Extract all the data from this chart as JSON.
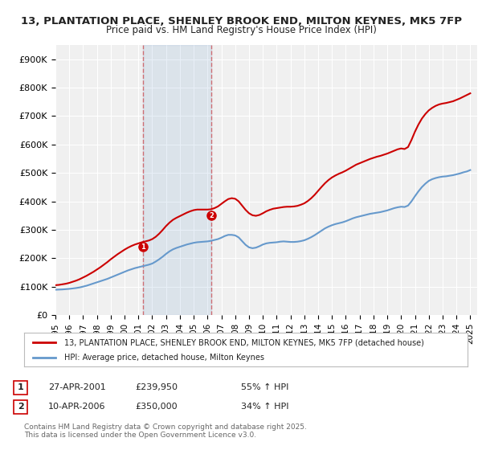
{
  "title_line1": "13, PLANTATION PLACE, SHENLEY BROOK END, MILTON KEYNES, MK5 7FP",
  "title_line2": "Price paid vs. HM Land Registry's House Price Index (HPI)",
  "background_color": "#ffffff",
  "plot_bg_color": "#f0f0f0",
  "ylabel": "",
  "ylim": [
    0,
    950000
  ],
  "yticks": [
    0,
    100000,
    200000,
    300000,
    400000,
    500000,
    600000,
    700000,
    800000,
    900000
  ],
  "ytick_labels": [
    "£0",
    "£100K",
    "£200K",
    "£300K",
    "£400K",
    "£500K",
    "£600K",
    "£700K",
    "£800K",
    "£900K"
  ],
  "xlim_start": 1995.0,
  "xlim_end": 2025.5,
  "xtick_years": [
    1995,
    1996,
    1997,
    1998,
    1999,
    2000,
    2001,
    2002,
    2003,
    2004,
    2005,
    2006,
    2007,
    2008,
    2009,
    2010,
    2011,
    2012,
    2013,
    2014,
    2015,
    2016,
    2017,
    2018,
    2019,
    2020,
    2021,
    2022,
    2023,
    2024,
    2025
  ],
  "hpi_line_color": "#6699cc",
  "price_line_color": "#cc0000",
  "purchase1_x": 2001.32,
  "purchase1_y": 239950,
  "purchase2_x": 2006.27,
  "purchase2_y": 350000,
  "purchase1_label": "1",
  "purchase2_label": "2",
  "vline_color": "#cc0000",
  "vline_alpha": 0.5,
  "legend_label_price": "13, PLANTATION PLACE, SHENLEY BROOK END, MILTON KEYNES, MK5 7FP (detached house)",
  "legend_label_hpi": "HPI: Average price, detached house, Milton Keynes",
  "table_rows": [
    {
      "num": "1",
      "date": "27-APR-2001",
      "price": "£239,950",
      "pct": "55% ↑ HPI"
    },
    {
      "num": "2",
      "date": "10-APR-2006",
      "price": "£350,000",
      "pct": "34% ↑ HPI"
    }
  ],
  "footer": "Contains HM Land Registry data © Crown copyright and database right 2025.\nThis data is licensed under the Open Government Licence v3.0.",
  "hpi_data_x": [
    1995.0,
    1995.25,
    1995.5,
    1995.75,
    1996.0,
    1996.25,
    1996.5,
    1996.75,
    1997.0,
    1997.25,
    1997.5,
    1997.75,
    1998.0,
    1998.25,
    1998.5,
    1998.75,
    1999.0,
    1999.25,
    1999.5,
    1999.75,
    2000.0,
    2000.25,
    2000.5,
    2000.75,
    2001.0,
    2001.25,
    2001.5,
    2001.75,
    2002.0,
    2002.25,
    2002.5,
    2002.75,
    2003.0,
    2003.25,
    2003.5,
    2003.75,
    2004.0,
    2004.25,
    2004.5,
    2004.75,
    2005.0,
    2005.25,
    2005.5,
    2005.75,
    2006.0,
    2006.25,
    2006.5,
    2006.75,
    2007.0,
    2007.25,
    2007.5,
    2007.75,
    2008.0,
    2008.25,
    2008.5,
    2008.75,
    2009.0,
    2009.25,
    2009.5,
    2009.75,
    2010.0,
    2010.25,
    2010.5,
    2010.75,
    2011.0,
    2011.25,
    2011.5,
    2011.75,
    2012.0,
    2012.25,
    2012.5,
    2012.75,
    2013.0,
    2013.25,
    2013.5,
    2013.75,
    2014.0,
    2014.25,
    2014.5,
    2014.75,
    2015.0,
    2015.25,
    2015.5,
    2015.75,
    2016.0,
    2016.25,
    2016.5,
    2016.75,
    2017.0,
    2017.25,
    2017.5,
    2017.75,
    2018.0,
    2018.25,
    2018.5,
    2018.75,
    2019.0,
    2019.25,
    2019.5,
    2019.75,
    2020.0,
    2020.25,
    2020.5,
    2020.75,
    2021.0,
    2021.25,
    2021.5,
    2021.75,
    2022.0,
    2022.25,
    2022.5,
    2022.75,
    2023.0,
    2023.25,
    2023.5,
    2023.75,
    2024.0,
    2024.25,
    2024.5,
    2024.75,
    2025.0
  ],
  "hpi_data_y": [
    89000,
    89500,
    90000,
    91000,
    92000,
    93500,
    95000,
    97000,
    100000,
    103000,
    107000,
    111000,
    115000,
    119000,
    123000,
    127000,
    132000,
    137000,
    142000,
    147000,
    152000,
    157000,
    161000,
    165000,
    168000,
    171000,
    174000,
    177000,
    181000,
    188000,
    196000,
    205000,
    215000,
    224000,
    231000,
    236000,
    240000,
    244000,
    248000,
    251000,
    254000,
    256000,
    257000,
    258000,
    259000,
    261000,
    264000,
    267000,
    272000,
    278000,
    282000,
    282000,
    280000,
    273000,
    260000,
    247000,
    238000,
    235000,
    237000,
    242000,
    248000,
    252000,
    254000,
    255000,
    256000,
    258000,
    259000,
    258000,
    257000,
    257000,
    258000,
    260000,
    263000,
    268000,
    274000,
    281000,
    289000,
    297000,
    305000,
    311000,
    316000,
    320000,
    323000,
    326000,
    330000,
    335000,
    340000,
    344000,
    347000,
    350000,
    353000,
    356000,
    358000,
    360000,
    362000,
    365000,
    368000,
    372000,
    376000,
    379000,
    381000,
    380000,
    385000,
    400000,
    418000,
    435000,
    450000,
    462000,
    472000,
    478000,
    482000,
    485000,
    487000,
    488000,
    490000,
    492000,
    495000,
    498000,
    502000,
    505000,
    510000
  ],
  "price_data_x": [
    1995.0,
    1995.25,
    1995.5,
    1995.75,
    1996.0,
    1996.25,
    1996.5,
    1996.75,
    1997.0,
    1997.25,
    1997.5,
    1997.75,
    1998.0,
    1998.25,
    1998.5,
    1998.75,
    1999.0,
    1999.25,
    1999.5,
    1999.75,
    2000.0,
    2000.25,
    2000.5,
    2000.75,
    2001.0,
    2001.25,
    2001.5,
    2001.75,
    2002.0,
    2002.25,
    2002.5,
    2002.75,
    2003.0,
    2003.25,
    2003.5,
    2003.75,
    2004.0,
    2004.25,
    2004.5,
    2004.75,
    2005.0,
    2005.25,
    2005.5,
    2005.75,
    2006.0,
    2006.25,
    2006.5,
    2006.75,
    2007.0,
    2007.25,
    2007.5,
    2007.75,
    2008.0,
    2008.25,
    2008.5,
    2008.75,
    2009.0,
    2009.25,
    2009.5,
    2009.75,
    2010.0,
    2010.25,
    2010.5,
    2010.75,
    2011.0,
    2011.25,
    2011.5,
    2011.75,
    2012.0,
    2012.25,
    2012.5,
    2012.75,
    2013.0,
    2013.25,
    2013.5,
    2013.75,
    2014.0,
    2014.25,
    2014.5,
    2014.75,
    2015.0,
    2015.25,
    2015.5,
    2015.75,
    2016.0,
    2016.25,
    2016.5,
    2016.75,
    2017.0,
    2017.25,
    2017.5,
    2017.75,
    2018.0,
    2018.25,
    2018.5,
    2018.75,
    2019.0,
    2019.25,
    2019.5,
    2019.75,
    2020.0,
    2020.25,
    2020.5,
    2020.75,
    2021.0,
    2021.25,
    2021.5,
    2021.75,
    2022.0,
    2022.25,
    2022.5,
    2022.75,
    2023.0,
    2023.25,
    2023.5,
    2023.75,
    2024.0,
    2024.25,
    2024.5,
    2024.75,
    2025.0
  ],
  "price_data_y": [
    105000,
    106000,
    108000,
    110000,
    113000,
    117000,
    121000,
    126000,
    132000,
    138000,
    145000,
    152000,
    160000,
    168000,
    177000,
    186000,
    196000,
    205000,
    214000,
    222000,
    230000,
    237000,
    243000,
    248000,
    252000,
    256000,
    259000,
    262000,
    267000,
    275000,
    286000,
    299000,
    313000,
    325000,
    335000,
    342000,
    348000,
    354000,
    360000,
    365000,
    369000,
    371000,
    371000,
    371000,
    371000,
    372000,
    376000,
    382000,
    391000,
    400000,
    408000,
    411000,
    409000,
    400000,
    385000,
    370000,
    358000,
    351000,
    349000,
    352000,
    358000,
    365000,
    370000,
    374000,
    376000,
    378000,
    380000,
    381000,
    381000,
    382000,
    384000,
    388000,
    393000,
    401000,
    411000,
    423000,
    437000,
    451000,
    464000,
    475000,
    484000,
    491000,
    497000,
    502000,
    508000,
    515000,
    522000,
    529000,
    534000,
    539000,
    544000,
    549000,
    553000,
    557000,
    560000,
    564000,
    568000,
    573000,
    578000,
    583000,
    586000,
    584000,
    591000,
    616000,
    645000,
    670000,
    691000,
    707000,
    720000,
    729000,
    736000,
    741000,
    744000,
    746000,
    749000,
    752000,
    757000,
    762000,
    768000,
    774000,
    780000
  ]
}
